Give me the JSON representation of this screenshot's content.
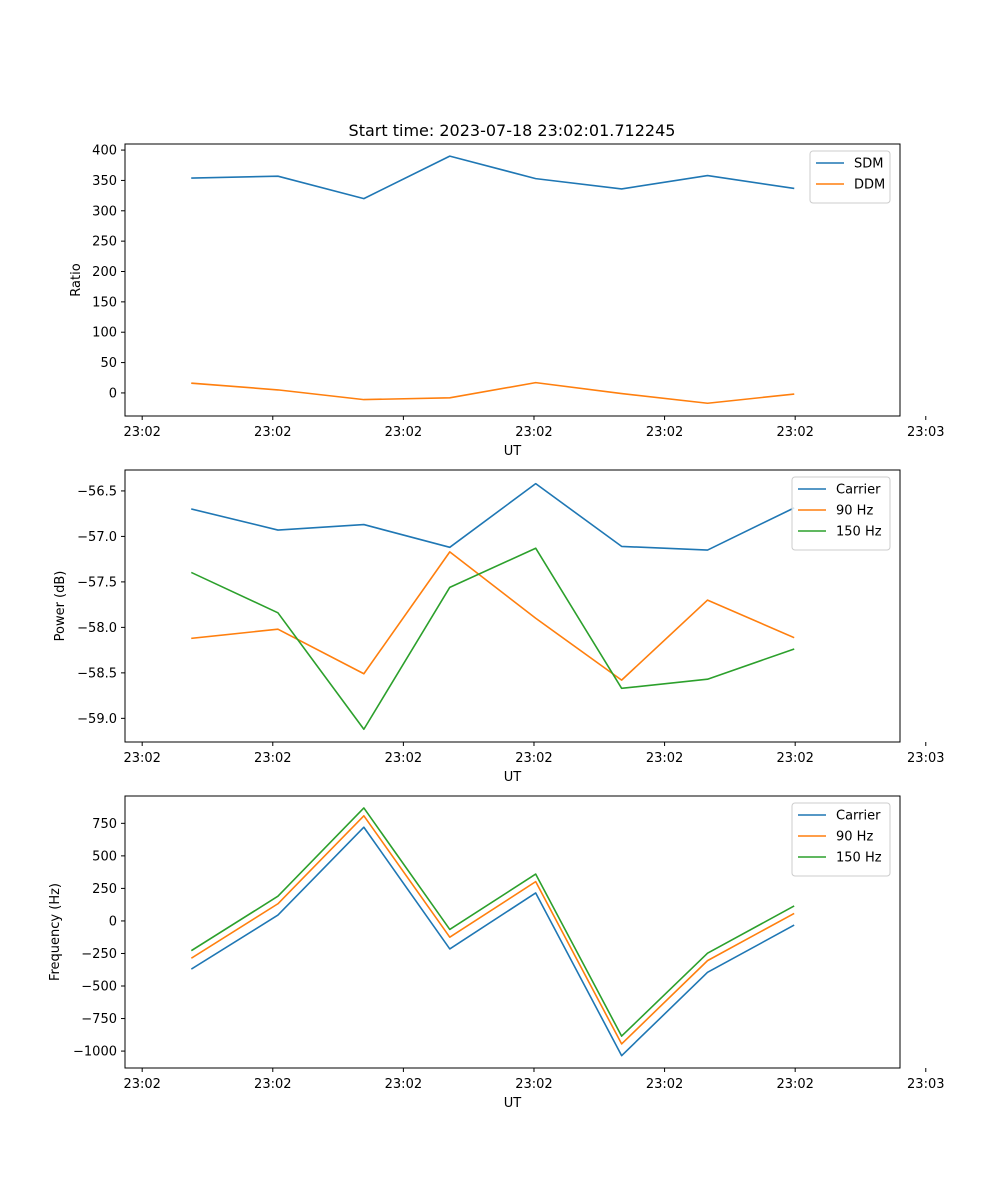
{
  "title": "Start time: 2023-07-18 23:02:01.712245",
  "chart_data": [
    {
      "type": "line",
      "xlabel": "UT",
      "ylabel": "Ratio",
      "x": [
        1,
        2,
        3,
        4,
        5,
        6,
        7,
        8
      ],
      "xlim": [
        0.22,
        9.24
      ],
      "xticks": [
        0.42,
        1.94,
        3.46,
        4.98,
        6.5,
        8.02,
        9.54
      ],
      "xticklabels": [
        "23:02",
        "23:02",
        "23:02",
        "23:02",
        "23:02",
        "23:02",
        "23:03"
      ],
      "ylim": [
        -38,
        410
      ],
      "yticks": [
        0,
        50,
        100,
        150,
        200,
        250,
        300,
        350,
        400
      ],
      "yticklabels": [
        "0",
        "50",
        "100",
        "150",
        "200",
        "250",
        "300",
        "350",
        "400"
      ],
      "legend": "top-right",
      "grid": false,
      "series": [
        {
          "name": "SDM",
          "color": "#1f77b4",
          "values": [
            354,
            357,
            320,
            390,
            353,
            336,
            358,
            337
          ]
        },
        {
          "name": "DDM",
          "color": "#ff7f0e",
          "values": [
            16,
            5,
            -11,
            -8,
            17,
            -1,
            -17,
            -2
          ]
        }
      ]
    },
    {
      "type": "line",
      "xlabel": "UT",
      "ylabel": "Power (dB)",
      "x": [
        1,
        2,
        3,
        4,
        5,
        6,
        7,
        8
      ],
      "xlim": [
        0.22,
        9.24
      ],
      "xticks": [
        0.42,
        1.94,
        3.46,
        4.98,
        6.5,
        8.02,
        9.54
      ],
      "xticklabels": [
        "23:02",
        "23:02",
        "23:02",
        "23:02",
        "23:02",
        "23:02",
        "23:03"
      ],
      "ylim": [
        -59.26,
        -56.27
      ],
      "yticks": [
        -59.0,
        -58.5,
        -58.0,
        -57.5,
        -57.0,
        -56.5
      ],
      "yticklabels": [
        "−59.0",
        "−58.5",
        "−58.0",
        "−57.5",
        "−57.0",
        "−56.5"
      ],
      "legend": "top-right",
      "grid": false,
      "series": [
        {
          "name": "Carrier",
          "color": "#1f77b4",
          "values": [
            -56.7,
            -56.93,
            -56.87,
            -57.12,
            -56.42,
            -57.11,
            -57.15,
            -56.69
          ]
        },
        {
          "name": "90 Hz",
          "color": "#ff7f0e",
          "values": [
            -58.12,
            -58.02,
            -58.51,
            -57.17,
            -57.9,
            -58.58,
            -57.7,
            -58.11
          ]
        },
        {
          "name": "150 Hz",
          "color": "#2ca02c",
          "values": [
            -57.4,
            -57.84,
            -59.12,
            -57.56,
            -57.13,
            -58.67,
            -58.57,
            -58.24
          ]
        }
      ]
    },
    {
      "type": "line",
      "xlabel": "UT",
      "ylabel": "Frequency (Hz)",
      "x": [
        1,
        2,
        3,
        4,
        5,
        6,
        7,
        8
      ],
      "xlim": [
        0.22,
        9.24
      ],
      "xticks": [
        0.42,
        1.94,
        3.46,
        4.98,
        6.5,
        8.02,
        9.54
      ],
      "xticklabels": [
        "23:02",
        "23:02",
        "23:02",
        "23:02",
        "23:02",
        "23:02",
        "23:03"
      ],
      "ylim": [
        -1130,
        960
      ],
      "yticks": [
        -1000,
        -750,
        -500,
        -250,
        0,
        250,
        500,
        750
      ],
      "yticklabels": [
        "−1000",
        "−750",
        "−500",
        "−250",
        "0",
        "250",
        "500",
        "750"
      ],
      "legend": "top-right",
      "grid": false,
      "series": [
        {
          "name": "Carrier",
          "color": "#1f77b4",
          "values": [
            -367,
            45,
            720,
            -215,
            215,
            -1035,
            -395,
            -35
          ]
        },
        {
          "name": "90 Hz",
          "color": "#ff7f0e",
          "values": [
            -283,
            132,
            808,
            -125,
            302,
            -945,
            -305,
            55
          ]
        },
        {
          "name": "150 Hz",
          "color": "#2ca02c",
          "values": [
            -225,
            190,
            868,
            -65,
            360,
            -885,
            -248,
            112
          ]
        }
      ]
    }
  ]
}
